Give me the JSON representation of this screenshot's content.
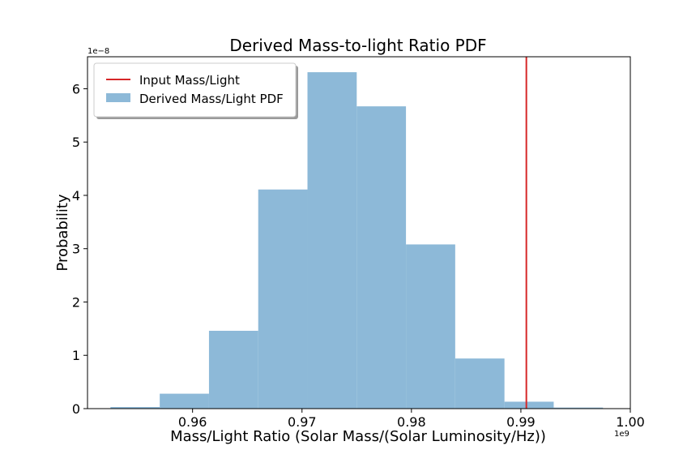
{
  "chart_data": {
    "type": "bar",
    "title": "Derived Mass-to-light Ratio PDF",
    "xlabel": "Mass/Light Ratio (Solar Mass/(Solar Luminosity/Hz))",
    "ylabel": "Probability",
    "x_offset_label": "1e9",
    "y_offset_label": "1e−8",
    "xlim": [
      0.9504,
      1.0
    ],
    "ylim": [
      0,
      6.6
    ],
    "x_ticks": [
      0.96,
      0.97,
      0.98,
      0.99,
      1.0
    ],
    "x_tick_labels": [
      "0.96",
      "0.97",
      "0.98",
      "0.99",
      "1.00"
    ],
    "y_ticks": [
      0,
      1,
      2,
      3,
      4,
      5,
      6
    ],
    "y_tick_labels": [
      "0",
      "1",
      "2",
      "3",
      "4",
      "5",
      "6"
    ],
    "grid": false,
    "legend_position": "top-left",
    "series": [
      {
        "name": "Derived Mass/Light PDF",
        "kind": "histogram",
        "color": "#8db9d8",
        "bin_edges": [
          0.9525,
          0.957,
          0.9615,
          0.966,
          0.9705,
          0.975,
          0.9795,
          0.984,
          0.9885,
          0.993,
          0.9975
        ],
        "values": [
          0.03,
          0.28,
          1.46,
          4.11,
          6.31,
          5.67,
          3.08,
          0.94,
          0.13,
          0.02
        ]
      },
      {
        "name": "Input Mass/Light",
        "kind": "vline",
        "color": "#d62728",
        "x": 0.9905
      }
    ]
  }
}
